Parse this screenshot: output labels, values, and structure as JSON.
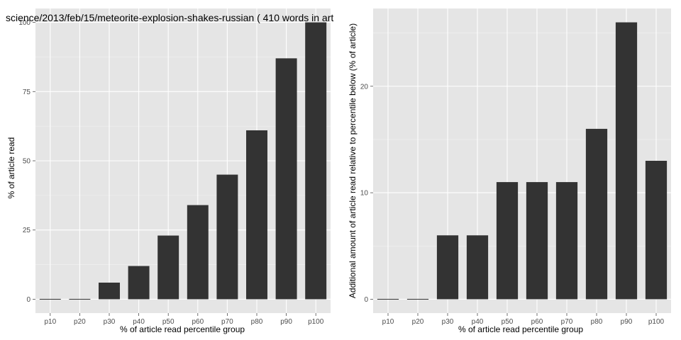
{
  "chart_data": [
    {
      "type": "bar",
      "title": "science/2013/feb/15/meteorite-explosion-shakes-russian ( 410 words in art",
      "xlabel": "% of article read percentile group",
      "ylabel": "% of article read",
      "categories": [
        "p10",
        "p20",
        "p30",
        "p40",
        "p50",
        "p60",
        "p70",
        "p80",
        "p90",
        "p100"
      ],
      "values": [
        0,
        0,
        6,
        12,
        23,
        34,
        45,
        61,
        87,
        100
      ],
      "ylim": [
        -5,
        105
      ],
      "yticks": [
        0,
        25,
        50,
        75,
        100
      ],
      "yticklabels": [
        "0",
        "25",
        "50",
        "75",
        "100"
      ],
      "grid": true,
      "bar_color": "#333333",
      "panel_color": "#e5e5e5"
    },
    {
      "type": "bar",
      "title": "",
      "xlabel": "% of article read percentile group",
      "ylabel": "Additional amount of article read relative to percentile below (% of article)",
      "categories": [
        "p10",
        "p20",
        "p30",
        "p40",
        "p50",
        "p60",
        "p70",
        "p80",
        "p90",
        "p100"
      ],
      "values": [
        0,
        0,
        6,
        6,
        11,
        11,
        11,
        16,
        26,
        13
      ],
      "ylim": [
        -1.3,
        27.3
      ],
      "yticks": [
        0,
        10,
        20
      ],
      "yticklabels": [
        "0",
        "10",
        "20"
      ],
      "grid": true,
      "bar_color": "#333333",
      "panel_color": "#e5e5e5"
    }
  ]
}
